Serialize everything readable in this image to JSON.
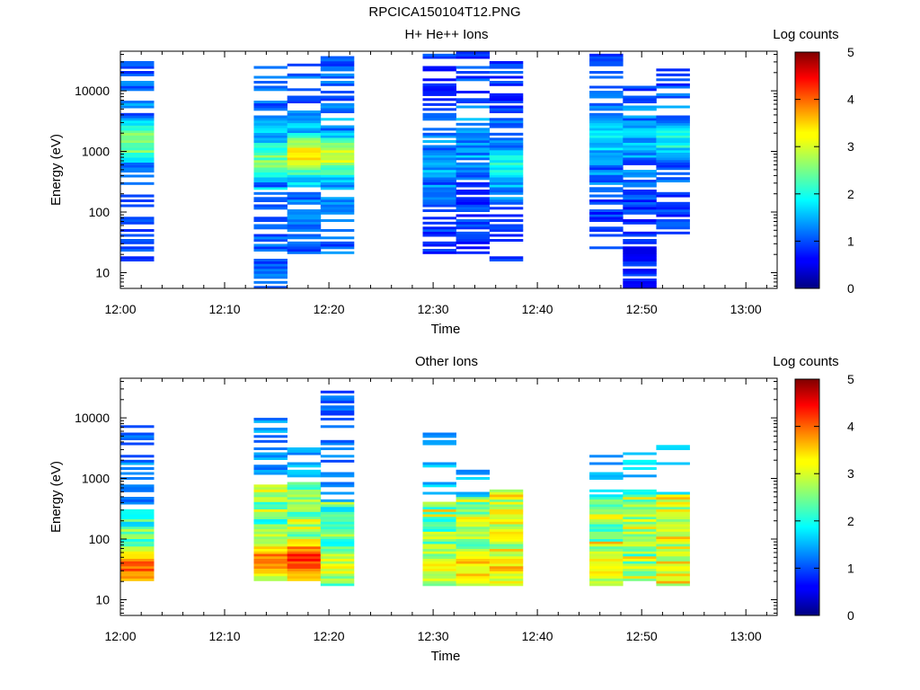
{
  "page": {
    "title": "RPCICA150104T12.PNG"
  },
  "chart_data": [
    {
      "type": "heatmap",
      "title": "H+ He++ Ions",
      "xlabel": "Time",
      "ylabel": "Energy (eV)",
      "x_ticks": [
        "12:00",
        "12:10",
        "12:20",
        "12:30",
        "12:40",
        "12:50",
        "13:00"
      ],
      "x_range_minutes": [
        0,
        63
      ],
      "y_scale": "log",
      "y_ticks": [
        "10",
        "100",
        "1000",
        "10000"
      ],
      "y_range": [
        5.5,
        45000
      ],
      "colorbar": {
        "label": "Log counts",
        "ticks": [
          "0",
          "1",
          "2",
          "3",
          "4",
          "5"
        ],
        "range": [
          0,
          5
        ]
      },
      "time_columns": [
        {
          "start_min": 0.0,
          "end_min": 3.2,
          "seed": 11,
          "emin": 16,
          "emax": 38000,
          "peak_e": 1500,
          "peak_v": 2.6,
          "width": 0.35,
          "bg": 0.75,
          "fill": 0.55,
          "floor_boost": 0
        },
        {
          "start_min": 12.8,
          "end_min": 16.0,
          "seed": 23,
          "emin": 6,
          "emax": 27000,
          "peak_e": 700,
          "peak_v": 2.4,
          "width": 0.35,
          "bg": 0.8,
          "fill": 0.55,
          "floor_boost": 0
        },
        {
          "start_min": 16.0,
          "end_min": 19.2,
          "seed": 37,
          "emin": 22,
          "emax": 30000,
          "peak_e": 850,
          "peak_v": 3.4,
          "width": 0.3,
          "bg": 0.8,
          "fill": 0.55,
          "floor_boost": 0
        },
        {
          "start_min": 19.2,
          "end_min": 22.4,
          "seed": 41,
          "emin": 22,
          "emax": 40000,
          "peak_e": 800,
          "peak_v": 2.8,
          "width": 0.35,
          "bg": 0.8,
          "fill": 0.55,
          "floor_boost": 0
        },
        {
          "start_min": 29.0,
          "end_min": 32.2,
          "seed": 53,
          "emin": 21,
          "emax": 38000,
          "peak_e": 600,
          "peak_v": 1.5,
          "width": 0.4,
          "bg": 0.6,
          "fill": 0.6,
          "floor_boost": 0
        },
        {
          "start_min": 32.2,
          "end_min": 35.4,
          "seed": 67,
          "emin": 21,
          "emax": 42000,
          "peak_e": 1500,
          "peak_v": 1.3,
          "width": 0.4,
          "bg": 0.6,
          "fill": 0.6,
          "floor_boost": 0
        },
        {
          "start_min": 35.4,
          "end_min": 38.6,
          "seed": 71,
          "emin": 16,
          "emax": 30000,
          "peak_e": 550,
          "peak_v": 1.9,
          "width": 0.4,
          "bg": 0.6,
          "fill": 0.6,
          "floor_boost": 0
        },
        {
          "start_min": 45.0,
          "end_min": 48.2,
          "seed": 83,
          "emin": 26,
          "emax": 38000,
          "peak_e": 1500,
          "peak_v": 1.7,
          "width": 0.5,
          "bg": 0.55,
          "fill": 0.6,
          "floor_boost": 0
        },
        {
          "start_min": 48.2,
          "end_min": 51.4,
          "seed": 97,
          "emin": 6,
          "emax": 12000,
          "peak_e": 1500,
          "peak_v": 1.5,
          "width": 0.5,
          "bg": 0.5,
          "fill": 0.6,
          "floor_boost": 0
        },
        {
          "start_min": 51.4,
          "end_min": 54.6,
          "seed": 101,
          "emin": 45,
          "emax": 30000,
          "peak_e": 1500,
          "peak_v": 1.9,
          "width": 0.4,
          "bg": 0.6,
          "fill": 0.6,
          "floor_boost": 0
        }
      ]
    },
    {
      "type": "heatmap",
      "title": "Other Ions",
      "xlabel": "Time",
      "ylabel": "Energy (eV)",
      "x_ticks": [
        "12:00",
        "12:10",
        "12:20",
        "12:30",
        "12:40",
        "12:50",
        "13:00"
      ],
      "x_range_minutes": [
        0,
        63
      ],
      "y_scale": "log",
      "y_ticks": [
        "10",
        "100",
        "1000",
        "10000"
      ],
      "y_range": [
        5.5,
        45000
      ],
      "colorbar": {
        "label": "Log counts",
        "ticks": [
          "0",
          "1",
          "2",
          "3",
          "4",
          "5"
        ],
        "range": [
          0,
          5
        ]
      },
      "time_columns": [
        {
          "start_min": 0.0,
          "end_min": 3.2,
          "seed": 5,
          "emin": 22,
          "emax": 7500,
          "peak_e": 35,
          "peak_v": 3.9,
          "width": 0.35,
          "bg": 0.9,
          "fill": 0.4,
          "floor_boost": 320
        },
        {
          "start_min": 12.8,
          "end_min": 16.0,
          "seed": 13,
          "emin": 22,
          "emax": 14000,
          "peak_e": 45,
          "peak_v": 3.8,
          "width": 0.4,
          "bg": 1.0,
          "fill": 0.4,
          "floor_boost": 800
        },
        {
          "start_min": 16.0,
          "end_min": 19.2,
          "seed": 29,
          "emin": 22,
          "emax": 4000,
          "peak_e": 45,
          "peak_v": 4.2,
          "width": 0.4,
          "bg": 1.1,
          "fill": 0.4,
          "floor_boost": 900
        },
        {
          "start_min": 19.2,
          "end_min": 22.4,
          "seed": 31,
          "emin": 17,
          "emax": 28000,
          "peak_e": 35,
          "peak_v": 2.9,
          "width": 0.45,
          "bg": 0.8,
          "fill": 0.4,
          "floor_boost": 420
        },
        {
          "start_min": 29.0,
          "end_min": 32.2,
          "seed": 43,
          "emin": 17,
          "emax": 6000,
          "peak_e": 30,
          "peak_v": 3.0,
          "width": 0.45,
          "bg": 1.2,
          "fill": 0.35,
          "floor_boost": 420
        },
        {
          "start_min": 32.2,
          "end_min": 35.4,
          "seed": 59,
          "emin": 17,
          "emax": 1400,
          "peak_e": 35,
          "peak_v": 3.3,
          "width": 0.45,
          "bg": 1.2,
          "fill": 0.35,
          "floor_boost": 500
        },
        {
          "start_min": 35.4,
          "end_min": 38.6,
          "seed": 61,
          "emin": 17,
          "emax": 700,
          "peak_e": 33,
          "peak_v": 3.2,
          "width": 0.45,
          "bg": 1.4,
          "fill": 0.35,
          "floor_boost": 640
        },
        {
          "start_min": 45.0,
          "end_min": 48.2,
          "seed": 73,
          "emin": 17,
          "emax": 3500,
          "peak_e": 35,
          "peak_v": 3.1,
          "width": 0.45,
          "bg": 1.2,
          "fill": 0.35,
          "floor_boost": 500
        },
        {
          "start_min": 48.2,
          "end_min": 51.4,
          "seed": 79,
          "emin": 22,
          "emax": 3500,
          "peak_e": 95,
          "peak_v": 2.7,
          "width": 0.4,
          "bg": 1.3,
          "fill": 0.35,
          "floor_boost": 560
        },
        {
          "start_min": 51.4,
          "end_min": 54.6,
          "seed": 89,
          "emin": 17,
          "emax": 3800,
          "peak_e": 35,
          "peak_v": 2.5,
          "width": 0.45,
          "bg": 1.5,
          "fill": 0.35,
          "floor_boost": 560
        }
      ]
    }
  ]
}
